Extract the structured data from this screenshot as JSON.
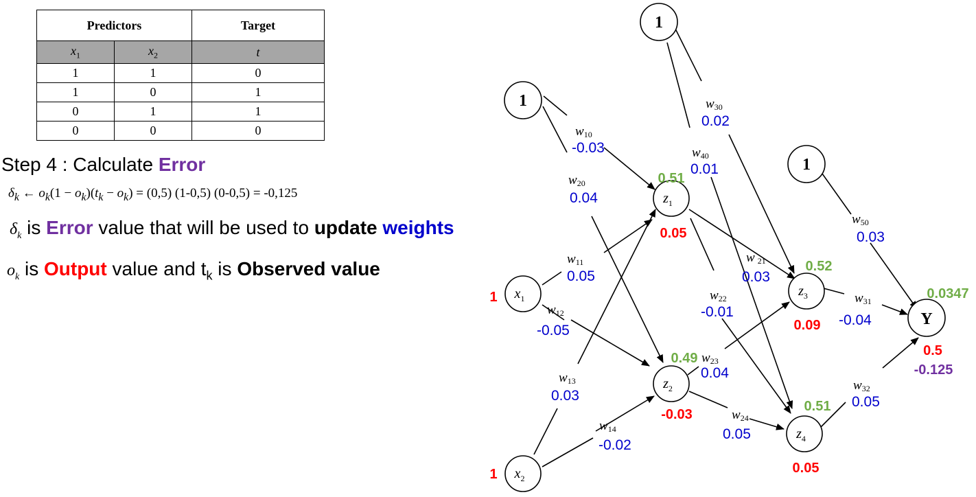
{
  "table": {
    "header_predictors": "Predictors",
    "header_target": "Target",
    "col_x1": "x",
    "col_x1_sub": "1",
    "col_x2": "x",
    "col_x2_sub": "2",
    "col_t": "t",
    "rows": [
      [
        "1",
        "1",
        "0"
      ],
      [
        "1",
        "0",
        "1"
      ],
      [
        "0",
        "1",
        "1"
      ],
      [
        "0",
        "0",
        "0"
      ]
    ]
  },
  "step": {
    "prefix": "Step 4 : Calculate ",
    "highlight": "Error"
  },
  "formula": {
    "text": "δk ← ok(1 − ok)(tk − ok)",
    "delta": "δ",
    "k": "k",
    "arrow": " ← ",
    "o": "o",
    "one_minus": "(1 − ",
    "close": ")",
    "t_open": "(",
    "t": "t",
    "minus": " − ",
    "calc": " = (0,5) (1-0,5) (0-0,5) = -0,125"
  },
  "explain1": {
    "sym": "δ",
    "sub": "k",
    "a": " is ",
    "error": "Error",
    "b": " value that will be used to ",
    "update": "update",
    "c": " ",
    "weights": "weights"
  },
  "explain2": {
    "sym": "o",
    "sub": "k",
    "a": " is ",
    "output": "Output",
    "b": " value and t",
    "tsub": "k",
    "c": " is ",
    "observed": "Observed value"
  },
  "network": {
    "bias_label": "1",
    "inputs": [
      {
        "label": "x",
        "sub": "1",
        "value": "1"
      },
      {
        "label": "x",
        "sub": "2",
        "value": "1"
      }
    ],
    "hidden": [
      {
        "label": "z",
        "sub": "1",
        "net": "0.51",
        "out": "0.05"
      },
      {
        "label": "z",
        "sub": "2",
        "net": "0.49",
        "out": "-0.03"
      },
      {
        "label": "z",
        "sub": "3",
        "net": "0.52",
        "out": "0.09"
      },
      {
        "label": "z",
        "sub": "4",
        "net": "0.51",
        "out": "0.05"
      }
    ],
    "output": {
      "label": "Y",
      "net": "0.0347",
      "out": "0.5",
      "error": "-0.125"
    },
    "weights": [
      {
        "w": "w",
        "sub": "10",
        "value": "-0.03"
      },
      {
        "w": "w",
        "sub": "20",
        "value": "0.04"
      },
      {
        "w": "w",
        "sub": "11",
        "value": "0.05"
      },
      {
        "w": "w",
        "sub": "12",
        "value": "-0.05"
      },
      {
        "w": "w",
        "sub": "13",
        "value": "0.03"
      },
      {
        "w": "w",
        "sub": "14",
        "value": "-0.02"
      },
      {
        "w": "w",
        "sub": "30",
        "value": "0.02"
      },
      {
        "w": "w",
        "sub": "40",
        "value": "0.01"
      },
      {
        "w": "w",
        "sub": "21",
        "value": "0.03"
      },
      {
        "w": "w",
        "sub": "22",
        "value": "-0.01"
      },
      {
        "w": "w",
        "sub": "23",
        "value": "0.04"
      },
      {
        "w": "w",
        "sub": "24",
        "value": "0.05"
      },
      {
        "w": "w",
        "sub": "50",
        "value": "0.03"
      },
      {
        "w": "w",
        "sub": "31",
        "value": "-0.04"
      },
      {
        "w": "w",
        "sub": "32",
        "value": "0.05"
      }
    ]
  }
}
